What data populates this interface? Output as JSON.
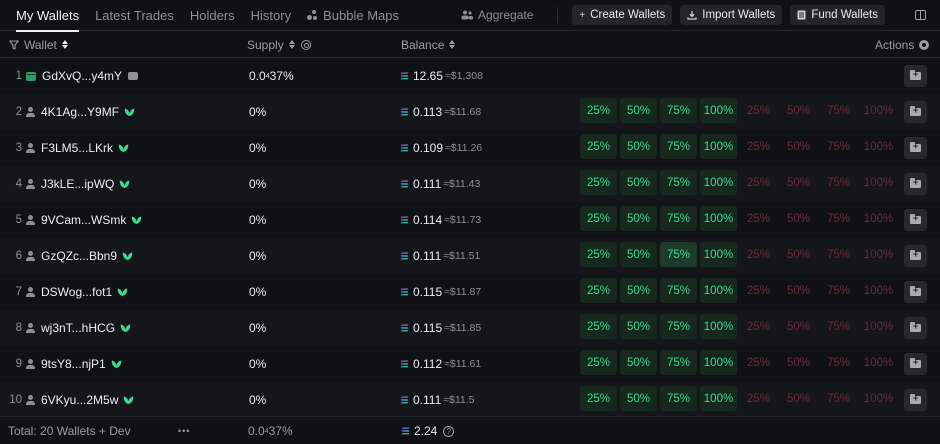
{
  "tabs": [
    {
      "label": "My Wallets",
      "active": true
    },
    {
      "label": "Latest Trades",
      "active": false
    },
    {
      "label": "Holders",
      "active": false
    },
    {
      "label": "History",
      "active": false
    },
    {
      "label": "Bubble Maps",
      "active": false,
      "icon": "bubble-icon"
    }
  ],
  "toolbar": {
    "aggregate_label": "Aggregate",
    "create_label": "Create Wallets",
    "import_label": "Import Wallets",
    "fund_label": "Fund Wallets"
  },
  "columns": {
    "wallet": "Wallet",
    "supply": "Supply",
    "balance": "Balance",
    "actions": "Actions"
  },
  "colors": {
    "background": "#101114",
    "buy_green": "#3ddc8c",
    "sell_red": "#6b2c38",
    "sol_gradient": [
      "#9945ff",
      "#14f195"
    ]
  },
  "buy_pcts": [
    "25%",
    "50%",
    "75%",
    "100%"
  ],
  "sell_pcts": [
    "25%",
    "50%",
    "75%",
    "100%"
  ],
  "rows": [
    {
      "index": "1",
      "wallet": "GdXvQ...y4mY",
      "type": "dev",
      "supply_main": "0.0",
      "supply_sub": "4",
      "supply_rest": "37%",
      "balance": "12.65",
      "usd": "≈$1,308",
      "show_pcts": false
    },
    {
      "index": "2",
      "wallet": "4K1Ag...Y9MF",
      "type": "user",
      "supply": "0%",
      "balance": "0.113",
      "usd": "≈$11.68",
      "show_pcts": true
    },
    {
      "index": "3",
      "wallet": "F3LM5...LKrk",
      "type": "user",
      "supply": "0%",
      "balance": "0.109",
      "usd": "≈$11.26",
      "show_pcts": true
    },
    {
      "index": "4",
      "wallet": "J3kLE...ipWQ",
      "type": "user",
      "supply": "0%",
      "balance": "0.111",
      "usd": "≈$11.43",
      "show_pcts": true
    },
    {
      "index": "5",
      "wallet": "9VCam...WSmk",
      "type": "user",
      "supply": "0%",
      "balance": "0.114",
      "usd": "≈$11.73",
      "show_pcts": true
    },
    {
      "index": "6",
      "wallet": "GzQZc...Bbn9",
      "type": "user",
      "supply": "0%",
      "balance": "0.111",
      "usd": "≈$11.51",
      "show_pcts": true,
      "highlight": 2
    },
    {
      "index": "7",
      "wallet": "DSWog...fot1",
      "type": "user",
      "supply": "0%",
      "balance": "0.115",
      "usd": "≈$11.87",
      "show_pcts": true
    },
    {
      "index": "8",
      "wallet": "wj3nT...hHCG",
      "type": "user",
      "supply": "0%",
      "balance": "0.115",
      "usd": "≈$11.85",
      "show_pcts": true
    },
    {
      "index": "9",
      "wallet": "9tsY8...njP1",
      "type": "user",
      "supply": "0%",
      "balance": "0.112",
      "usd": "≈$11.61",
      "show_pcts": true
    },
    {
      "index": "10",
      "wallet": "6VKyu...2M5w",
      "type": "user",
      "supply": "0%",
      "balance": "0.111",
      "usd": "≈$11.5",
      "show_pcts": true
    }
  ],
  "footer": {
    "total_label": "Total: 20 Wallets + Dev",
    "more": "•••",
    "supply_main": "0.0",
    "supply_sub": "4",
    "supply_rest": "37%",
    "balance": "2.24"
  }
}
